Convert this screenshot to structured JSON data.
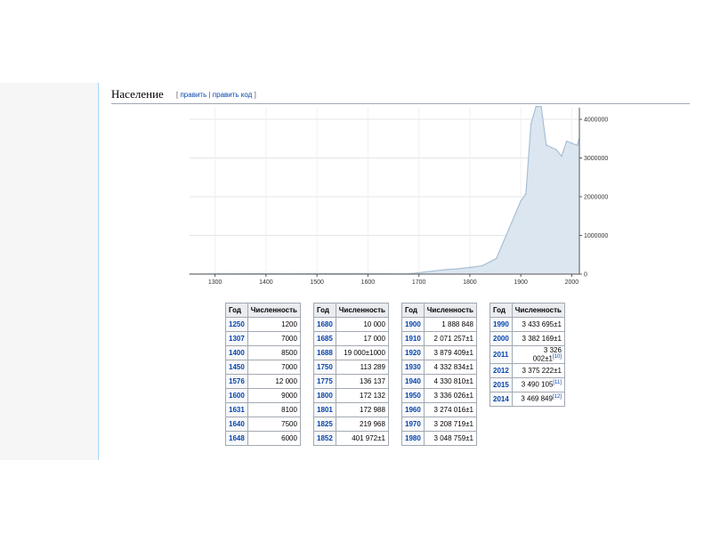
{
  "section": {
    "title": "Население",
    "edit_links": {
      "open": "[",
      "edit": "править",
      "sep": "|",
      "edit_code": "править код",
      "close": "]"
    }
  },
  "chart_data": {
    "type": "area",
    "x": [
      1250,
      1307,
      1400,
      1450,
      1576,
      1600,
      1631,
      1640,
      1648,
      1680,
      1685,
      1688,
      1750,
      1775,
      1800,
      1801,
      1825,
      1852,
      1900,
      1910,
      1920,
      1930,
      1940,
      1950,
      1960,
      1970,
      1980,
      1990,
      2000,
      2011,
      2012,
      2014,
      2015
    ],
    "y": [
      1200,
      7000,
      8500,
      7000,
      12000,
      9000,
      8100,
      7500,
      6000,
      10000,
      17000,
      19000,
      113289,
      136137,
      172132,
      172988,
      219968,
      401972,
      1888848,
      2071257,
      3879409,
      4332834,
      4330810,
      3336026,
      3274016,
      3208719,
      3048759,
      3433695,
      3382169,
      3326002,
      3375222,
      3469849,
      3490105
    ],
    "xlim": [
      1250,
      2015
    ],
    "ylim": [
      0,
      4300000
    ],
    "x_ticks": [
      "1300",
      "1400",
      "1500",
      "1600",
      "1700",
      "1800",
      "1900",
      "2000"
    ],
    "y_ticks": [
      "0",
      "1000000",
      "2000000",
      "3000000",
      "4000000"
    ],
    "grid": true,
    "color": "#dce6f0",
    "line_color": "#a8bfd6"
  },
  "table": {
    "headers": {
      "year": "Год",
      "population": "Численность"
    },
    "columns": [
      [
        {
          "year": "1250",
          "value": "1200"
        },
        {
          "year": "1307",
          "value": "7000"
        },
        {
          "year": "1400",
          "value": "8500"
        },
        {
          "year": "1450",
          "value": "7000"
        },
        {
          "year": "1576",
          "value": "12 000"
        },
        {
          "year": "1600",
          "value": "9000"
        },
        {
          "year": "1631",
          "value": "8100"
        },
        {
          "year": "1640",
          "value": "7500"
        },
        {
          "year": "1648",
          "value": "6000"
        }
      ],
      [
        {
          "year": "1680",
          "value": "10 000"
        },
        {
          "year": "1685",
          "value": "17 000"
        },
        {
          "year": "1688",
          "value": "19 000±1000"
        },
        {
          "year": "1750",
          "value": "113 289"
        },
        {
          "year": "1775",
          "value": "136 137"
        },
        {
          "year": "1800",
          "value": "172 132"
        },
        {
          "year": "1801",
          "value": "172 988"
        },
        {
          "year": "1825",
          "value": "219 968"
        },
        {
          "year": "1852",
          "value": "401 972±1"
        }
      ],
      [
        {
          "year": "1900",
          "value": "1 888 848"
        },
        {
          "year": "1910",
          "value": "2 071 257±1"
        },
        {
          "year": "1920",
          "value": "3 879 409±1"
        },
        {
          "year": "1930",
          "value": "4 332 834±1"
        },
        {
          "year": "1940",
          "value": "4 330 810±1"
        },
        {
          "year": "1950",
          "value": "3 336 026±1"
        },
        {
          "year": "1960",
          "value": "3 274 016±1"
        },
        {
          "year": "1970",
          "value": "3 208 719±1"
        },
        {
          "year": "1980",
          "value": "3 048 759±1"
        }
      ],
      [
        {
          "year": "1990",
          "value": "3 433 695±1"
        },
        {
          "year": "2000",
          "value": "3 382 169±1"
        },
        {
          "year": "2011",
          "value": "3 326 002±1",
          "ref": "[10]"
        },
        {
          "year": "2012",
          "value": "3 375 222±1"
        },
        {
          "year": "2015",
          "value": "3 490 105",
          "ref": "[11]"
        },
        {
          "year": "2014",
          "value": "3 469 849",
          "ref": "[12]"
        }
      ]
    ]
  }
}
